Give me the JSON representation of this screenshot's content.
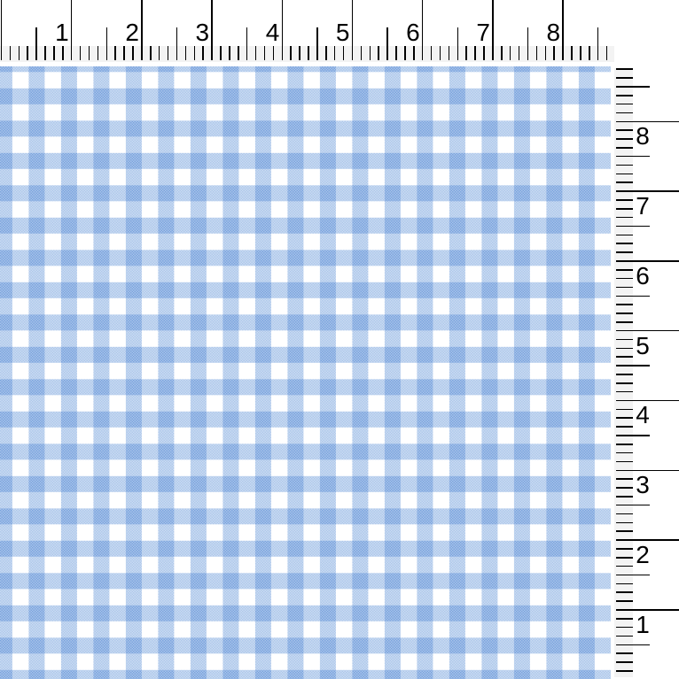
{
  "top_ruler": {
    "unit_labels": [
      "1",
      "2",
      "3",
      "4",
      "5",
      "6",
      "7",
      "8"
    ]
  },
  "right_ruler": {
    "unit_labels": [
      "8",
      "7",
      "6",
      "5",
      "4",
      "3",
      "2",
      "1"
    ]
  },
  "ruler": {
    "tick_color": "#000000",
    "edge_shade_color": "#f3f3f3"
  },
  "fabric": {
    "pattern": "gingham-check",
    "colors": {
      "white": "#ffffff",
      "check_light": "#afc8eb",
      "check_dark": "#7ba4dd",
      "check_overlay_rgba": "rgba(26,98,198,0.35)"
    }
  }
}
